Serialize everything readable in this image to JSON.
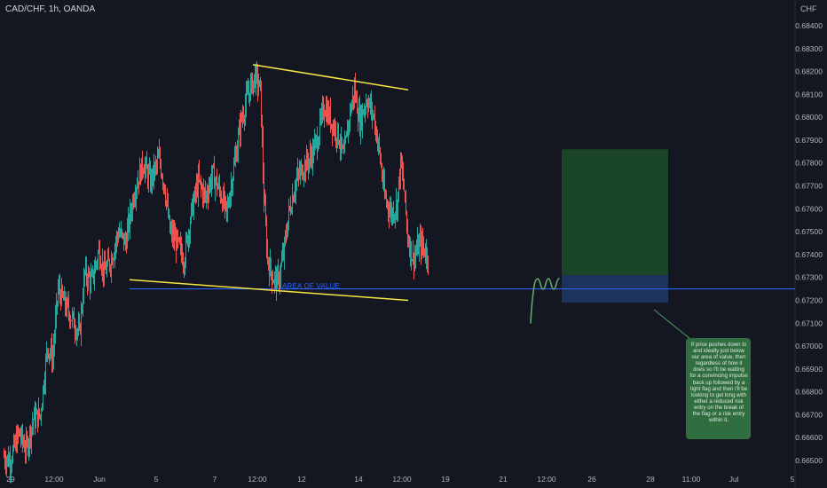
{
  "header": {
    "title": "CAD/CHF, 1h, OANDA",
    "currency": "CHF"
  },
  "annotations": {
    "area_label": "AREA OF VALUE",
    "note": "If price pushes down to and ideally just below our area of value, then regardless of how it does so I'll be waiting for a convincing impulse back up followed by a tight flag and then I'll be looking to get long with either a reduced risk entry on the break of the flag or a risk entry within it."
  },
  "colors": {
    "background": "#141722",
    "bull_candle": "#26a69a",
    "bear_candle": "#ef5350",
    "trendline": "#f5e642",
    "area_of_value": "#2962ff",
    "target_zone": "#1b4d27",
    "stop_zone": "#1f3566",
    "note_box": "#306e3f",
    "projection_path": "#5fa86e"
  },
  "chart_data": {
    "type": "candlestick",
    "title": "CAD/CHF, 1h, OANDA",
    "symbol": "CAD/CHF",
    "timeframe": "1h",
    "exchange": "OANDA",
    "y_unit": "CHF",
    "ylim": [
      0.6647,
      0.685
    ],
    "y_ticks": [
      0.665,
      0.666,
      0.667,
      0.668,
      0.669,
      0.67,
      0.671,
      0.672,
      0.673,
      0.674,
      0.675,
      0.676,
      0.677,
      0.678,
      0.679,
      0.68,
      0.681,
      0.682,
      0.683,
      0.684
    ],
    "y_tick_labels": [
      "0.66500",
      "0.66600",
      "0.66700",
      "0.66800",
      "0.66900",
      "0.67000",
      "0.67100",
      "0.67200",
      "0.67300",
      "0.67400",
      "0.67500",
      "0.67600",
      "0.67700",
      "0.67800",
      "0.67900",
      "0.68000",
      "0.68100",
      "0.68200",
      "0.68300",
      "0.68400"
    ],
    "x_tick_labels": [
      "29",
      "12:00",
      "Jun",
      "5",
      "7",
      "12:00",
      "12",
      "14",
      "12:00",
      "19",
      "21",
      "12:00",
      "26",
      "28",
      "11:00",
      "Jul",
      "5"
    ],
    "series_shape": [
      [
        0,
        0.6652
      ],
      [
        8,
        0.665
      ],
      [
        18,
        0.6662
      ],
      [
        26,
        0.6655
      ],
      [
        34,
        0.6668
      ],
      [
        42,
        0.667
      ],
      [
        50,
        0.67
      ],
      [
        56,
        0.6695
      ],
      [
        62,
        0.6725
      ],
      [
        70,
        0.6718
      ],
      [
        78,
        0.6712
      ],
      [
        86,
        0.6705
      ],
      [
        92,
        0.6732
      ],
      [
        100,
        0.6728
      ],
      [
        108,
        0.6742
      ],
      [
        114,
        0.6732
      ],
      [
        122,
        0.6738
      ],
      [
        130,
        0.675
      ],
      [
        138,
        0.6745
      ],
      [
        148,
        0.6768
      ],
      [
        158,
        0.678
      ],
      [
        166,
        0.6772
      ],
      [
        176,
        0.6782
      ],
      [
        182,
        0.677
      ],
      [
        188,
        0.675
      ],
      [
        196,
        0.6745
      ],
      [
        204,
        0.6738
      ],
      [
        212,
        0.6758
      ],
      [
        220,
        0.6772
      ],
      [
        228,
        0.6765
      ],
      [
        236,
        0.6775
      ],
      [
        244,
        0.6768
      ],
      [
        252,
        0.6758
      ],
      [
        260,
        0.6778
      ],
      [
        268,
        0.6798
      ],
      [
        276,
        0.681
      ],
      [
        284,
        0.6818
      ],
      [
        290,
        0.6812
      ],
      [
        294,
        0.6765
      ],
      [
        298,
        0.6738
      ],
      [
        304,
        0.673
      ],
      [
        310,
        0.6728
      ],
      [
        316,
        0.674
      ],
      [
        322,
        0.6758
      ],
      [
        330,
        0.6772
      ],
      [
        338,
        0.6778
      ],
      [
        346,
        0.6782
      ],
      [
        354,
        0.679
      ],
      [
        362,
        0.6805
      ],
      [
        370,
        0.6798
      ],
      [
        378,
        0.6792
      ],
      [
        384,
        0.6782
      ],
      [
        390,
        0.68
      ],
      [
        396,
        0.6812
      ],
      [
        402,
        0.6798
      ],
      [
        410,
        0.6808
      ],
      [
        418,
        0.68
      ],
      [
        424,
        0.6785
      ],
      [
        430,
        0.6765
      ],
      [
        438,
        0.6758
      ],
      [
        444,
        0.6762
      ],
      [
        448,
        0.678
      ],
      [
        452,
        0.6768
      ],
      [
        456,
        0.6748
      ],
      [
        462,
        0.6738
      ],
      [
        470,
        0.6745
      ],
      [
        478,
        0.674
      ]
    ],
    "series_x_note": "x = hourly bar index from the first visible candle",
    "trendlines": [
      {
        "name": "upper",
        "points": [
          [
            0.6823,
            0
          ],
          [
            0.6812,
            0
          ]
        ]
      },
      {
        "name": "lower",
        "points": [
          [
            0.6729,
            0
          ],
          [
            0.672,
            0
          ]
        ]
      }
    ],
    "area_of_value": 0.6725,
    "long_position": {
      "target": 0.6786,
      "entry": 0.6731,
      "stop": 0.6719
    }
  }
}
